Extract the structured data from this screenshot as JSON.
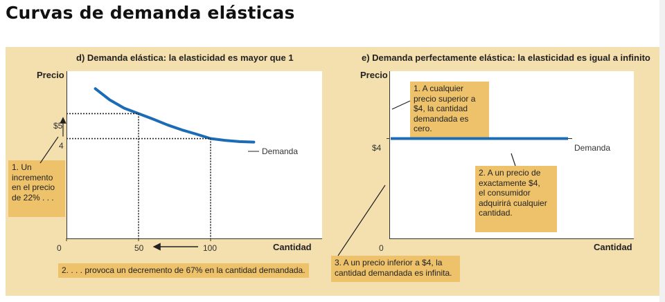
{
  "page": {
    "title": "Curvas de demanda elásticas"
  },
  "chart_data": [
    {
      "type": "line",
      "title": "d) Demanda elástica: la elasticidad es mayor que 1",
      "ylabel": "Precio",
      "xlabel": "Cantidad",
      "x_ticks": [
        "0",
        "50",
        "100"
      ],
      "y_ticks": [
        "$5",
        "4"
      ],
      "xlim": [
        0,
        145
      ],
      "ylim": [
        0,
        6.7
      ],
      "series": [
        {
          "name": "Demanda",
          "x": [
            20,
            30,
            40,
            50,
            60,
            70,
            80,
            90,
            100,
            110,
            120,
            130
          ],
          "y": [
            6.0,
            5.55,
            5.22,
            5.0,
            4.78,
            4.55,
            4.35,
            4.18,
            4.0,
            3.93,
            3.88,
            3.86
          ]
        }
      ],
      "reference_points": [
        {
          "x": 50,
          "y": 5
        },
        {
          "x": 100,
          "y": 4
        }
      ],
      "annotations": [
        "1. Un incremento en el precio de 22% . . .",
        "2. . . . provoca un decremento de 67% en la cantidad demandada."
      ]
    },
    {
      "type": "line",
      "title": "e) Demanda perfectamente elástica: la elasticidad es igual a infinito",
      "ylabel": "Precio",
      "xlabel": "Cantidad",
      "x_ticks": [
        "0"
      ],
      "y_ticks": [
        "$4"
      ],
      "ylim": [
        0,
        6.7
      ],
      "series": [
        {
          "name": "Demanda",
          "y": 4
        }
      ],
      "annotations": [
        "1. A cualquier precio superior a $4, la cantidad demandada es cero.",
        "2. A un precio de exactamente $4, el consumidor adquirirá cualquier cantidad.",
        "3. A un precio inferior a $4, la cantidad demandada es infinita."
      ]
    }
  ],
  "labels": {
    "d_title": "d) Demanda elástica: la elasticidad es mayor que 1",
    "d_ylabel": "Precio",
    "d_xlabel": "Cantidad",
    "d_curve": "Demanda",
    "d_tick_x0": "0",
    "d_tick_x50": "50",
    "d_tick_x100": "100",
    "d_tick_y5": "$5",
    "d_tick_y4": "4",
    "d_note1_l1": "1. Un",
    "d_note1_l2": "incremento",
    "d_note1_l3": "en el precio",
    "d_note1_l4": "de 22% . . .",
    "d_note2": "2. . . . provoca un decremento de 67% en la cantidad demandada.",
    "e_title": "e) Demanda perfectamente elástica: la elasticidad es igual a infinito",
    "e_ylabel": "Precio",
    "e_xlabel": "Cantidad",
    "e_curve": "Demanda",
    "e_tick_x0": "0",
    "e_tick_y4": "$4",
    "e_note1_l1": "1. A cualquier",
    "e_note1_l2": "precio superior a",
    "e_note1_l3": "$4, la cantidad",
    "e_note1_l4": "demandada es cero.",
    "e_note2_l1": "2. A un precio de",
    "e_note2_l2": "exactamente $4,",
    "e_note2_l3": "el consumidor",
    "e_note2_l4": "adquirirá cualquier",
    "e_note2_l5": "cantidad.",
    "e_note3_l1": "3. A un precio inferior a $4, la",
    "e_note3_l2": "cantidad demandada es infinita."
  },
  "colors": {
    "curve": "#1c6bb5",
    "figure_background": "#f4dfae",
    "note_background": "#eec26a",
    "axis": "#333333"
  }
}
